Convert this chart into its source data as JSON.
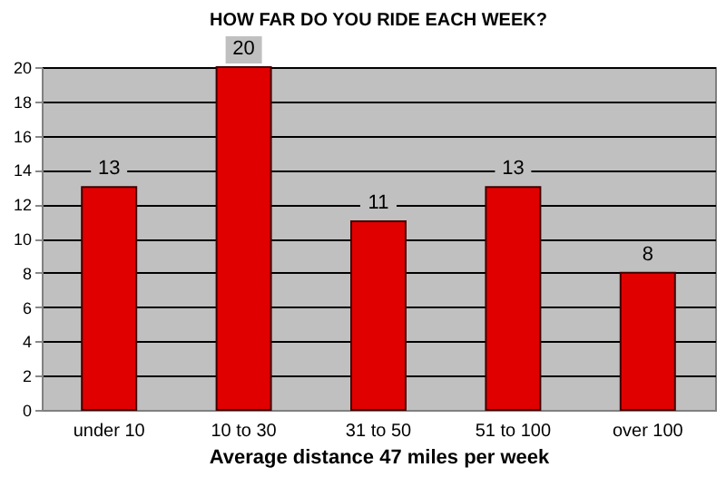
{
  "chart_data": {
    "type": "bar",
    "title": "HOW FAR DO YOU RIDE EACH WEEK?",
    "xlabel": "Average distance 47 miles per week",
    "categories": [
      "under 10",
      "10 to 30",
      "31 to 50",
      "51 to 100",
      "over 100"
    ],
    "values": [
      13,
      20,
      11,
      13,
      8
    ],
    "color": "#e00000",
    "ylim": [
      0,
      20
    ],
    "yticks": [
      0,
      2,
      4,
      6,
      8,
      10,
      12,
      14,
      16,
      18,
      20
    ],
    "grid": "y",
    "data_labels": true
  }
}
